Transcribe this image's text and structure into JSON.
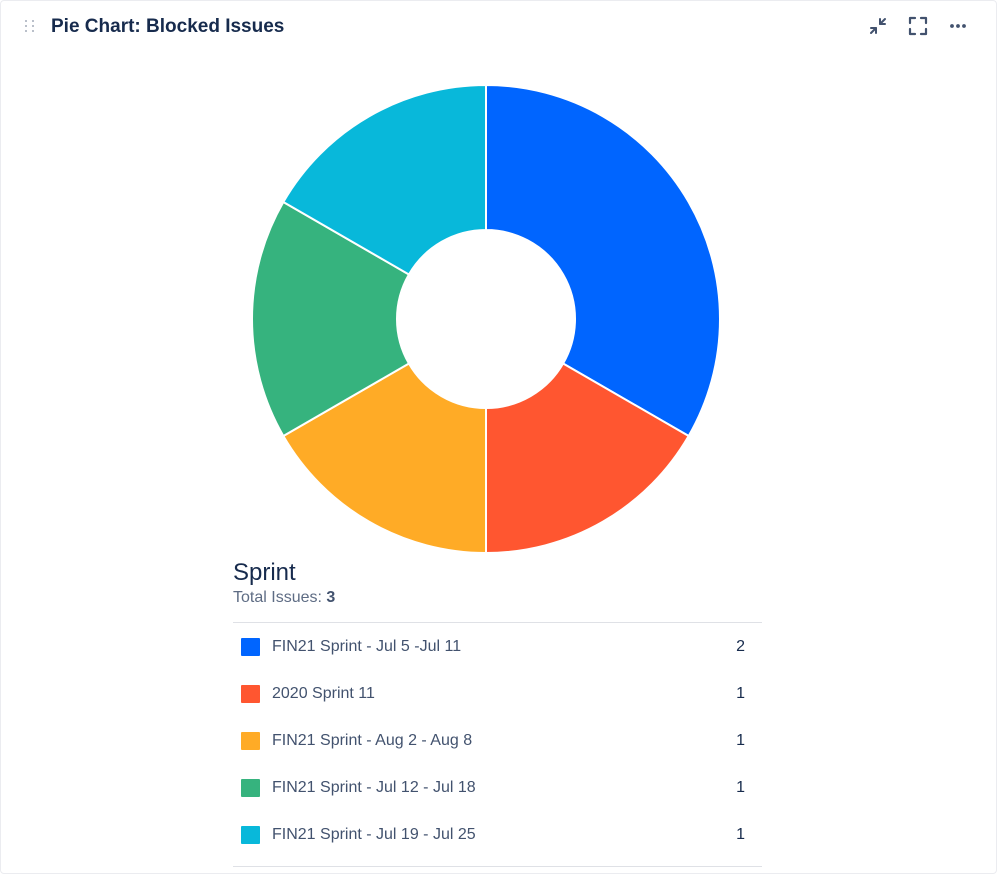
{
  "header": {
    "title": "Pie Chart: Blocked Issues",
    "actions": [
      {
        "name": "minimize-icon"
      },
      {
        "name": "fullscreen-icon"
      },
      {
        "name": "more-icon"
      }
    ]
  },
  "legend": {
    "title": "Sprint",
    "total_label": "Total Issues:",
    "total_value": "3"
  },
  "chart_data": {
    "type": "pie",
    "variant": "donut",
    "title": "Pie Chart: Blocked Issues",
    "legend_title": "Sprint",
    "legend_placement": "bottom",
    "categories": [
      "FIN21 Sprint - Jul 5 -Jul 11",
      "2020 Sprint 11",
      "FIN21 Sprint - Aug 2 - Aug 8",
      "FIN21 Sprint - Jul 12 - Jul 18",
      "FIN21 Sprint - Jul 19 - Jul 25"
    ],
    "values": [
      2,
      1,
      1,
      1,
      1
    ],
    "colors": [
      "#0065FF",
      "#FF5630",
      "#FFAB26",
      "#36B37E",
      "#08B8DA"
    ]
  }
}
